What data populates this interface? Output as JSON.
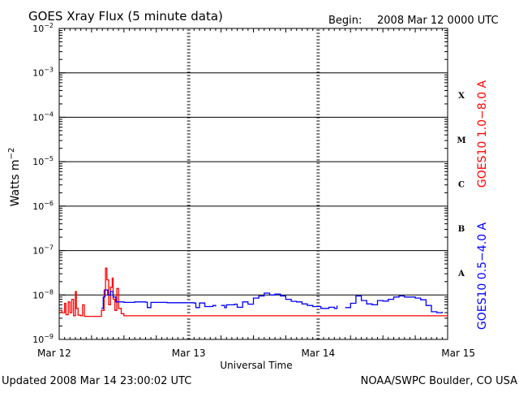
{
  "header": {
    "title": "GOES Xray Flux (5 minute data)",
    "begin_label": "Begin:",
    "begin_date": "2008 Mar 12 0000 UTC"
  },
  "footer": {
    "updated": "Updated 2008 Mar 14 23:00:02 UTC",
    "source": "NOAA/SWPC Boulder, CO USA"
  },
  "chart_data": {
    "type": "line",
    "title": "GOES Xray Flux (5 minute data)",
    "xlabel": "Universal Time",
    "ylabel": {
      "base": "Watts m",
      "sup": "−2"
    },
    "yscale": "log",
    "ylim": [
      1e-09,
      0.01
    ],
    "xlim": [
      "2008-03-12 00:00",
      "2008-03-15 00:00"
    ],
    "x_ticks": [
      "Mar 12",
      "Mar 13",
      "Mar 14",
      "Mar 15"
    ],
    "y_ticks": [
      {
        "value": 1e-09,
        "base": "10",
        "exp": "−9"
      },
      {
        "value": 1e-08,
        "base": "10",
        "exp": "−8"
      },
      {
        "value": 1e-07,
        "base": "10",
        "exp": "−7"
      },
      {
        "value": 1e-06,
        "base": "10",
        "exp": "−6"
      },
      {
        "value": 1e-05,
        "base": "10",
        "exp": "−5"
      },
      {
        "value": 0.0001,
        "base": "10",
        "exp": "−4"
      },
      {
        "value": 0.001,
        "base": "10",
        "exp": "−3"
      },
      {
        "value": 0.01,
        "base": "10",
        "exp": "−2"
      }
    ],
    "flare_classes": [
      {
        "label": "X",
        "low": 0.0001,
        "high": 0.001
      },
      {
        "label": "M",
        "low": 1e-05,
        "high": 0.0001
      },
      {
        "label": "C",
        "low": 1e-06,
        "high": 1e-05
      },
      {
        "label": "B",
        "low": 1e-07,
        "high": 1e-06
      },
      {
        "label": "A",
        "low": 1e-08,
        "high": 1e-07
      }
    ],
    "series": [
      {
        "name": "GOES10 1.0−8.0 A",
        "color": "#ff0000",
        "points": [
          [
            "2008-03-12 00:00",
            4.5e-09
          ],
          [
            "2008-03-12 00:30",
            4e-09
          ],
          [
            "2008-03-12 01:00",
            6.5e-09
          ],
          [
            "2008-03-12 01:15",
            3.6e-09
          ],
          [
            "2008-03-12 01:40",
            7e-09
          ],
          [
            "2008-03-12 02:00",
            4e-09
          ],
          [
            "2008-03-12 02:20",
            8e-09
          ],
          [
            "2008-03-12 02:40",
            3.4e-09
          ],
          [
            "2008-03-12 03:00",
            1.2e-08
          ],
          [
            "2008-03-12 03:10",
            5e-09
          ],
          [
            "2008-03-12 03:30",
            3.5e-09
          ],
          [
            "2008-03-12 04:00",
            3.4e-09
          ],
          [
            "2008-03-12 04:20",
            6e-09
          ],
          [
            "2008-03-12 04:40",
            3.3e-09
          ],
          [
            "2008-03-12 05:00",
            3.3e-09
          ],
          [
            "2008-03-12 07:30",
            3.3e-09
          ],
          [
            "2008-03-12 07:50",
            4.5e-09
          ],
          [
            "2008-03-12 08:20",
            1.3e-08
          ],
          [
            "2008-03-12 08:35",
            4e-08
          ],
          [
            "2008-03-12 08:50",
            2.2e-08
          ],
          [
            "2008-03-12 09:10",
            6e-09
          ],
          [
            "2008-03-12 09:30",
            1.5e-08
          ],
          [
            "2008-03-12 09:50",
            2.4e-08
          ],
          [
            "2008-03-12 10:00",
            8e-09
          ],
          [
            "2008-03-12 10:20",
            4.5e-09
          ],
          [
            "2008-03-12 10:40",
            1.4e-08
          ],
          [
            "2008-03-12 11:00",
            5e-09
          ],
          [
            "2008-03-12 11:30",
            3.8e-09
          ],
          [
            "2008-03-12 12:00",
            3.4e-09
          ],
          [
            "2008-03-14 23:55",
            3.3e-09
          ]
        ]
      },
      {
        "name": "GOES10 0.5−4.0 A",
        "color": "#0000ff",
        "points": [
          [
            "2008-03-12 07:50",
            5e-09
          ],
          [
            "2008-03-12 08:10",
            9e-09
          ],
          [
            "2008-03-12 08:30",
            1.3e-08
          ],
          [
            "2008-03-12 09:00",
            1e-08
          ],
          [
            "2008-03-12 09:30",
            1.2e-08
          ],
          [
            "2008-03-12 10:00",
            9e-09
          ],
          [
            "2008-03-12 10:30",
            7e-09
          ],
          [
            "2008-03-12 12:00",
            6.8e-09
          ],
          [
            "2008-03-12 14:00",
            7e-09
          ],
          [
            "2008-03-12 16:00",
            6.9e-09
          ],
          [
            "2008-03-12 16:20",
            5.2e-09
          ],
          [
            "2008-03-12 17:00",
            6.8e-09
          ],
          [
            "2008-03-12 20:00",
            6.7e-09
          ],
          [
            "2008-03-13 01:00",
            6.6e-09
          ],
          [
            "2008-03-13 01:20",
            5.2e-09
          ],
          [
            "2008-03-13 02:00",
            6.6e-09
          ],
          [
            "2008-03-13 03:00",
            5.5e-09
          ],
          [
            "2008-03-13 04:30",
            5.8e-09
          ],
          [
            "2008-03-13 05:00",
            5.5e-09
          ]
        ]
      },
      {
        "name": "GOES10 0.5−4.0 A",
        "color": "#0000ff",
        "points": [
          [
            "2008-03-13 06:00",
            5.8e-09
          ],
          [
            "2008-03-13 06:40",
            5.2e-09
          ],
          [
            "2008-03-13 07:00",
            6e-09
          ],
          [
            "2008-03-13 08:30",
            6.2e-09
          ],
          [
            "2008-03-13 09:00",
            5.3e-09
          ],
          [
            "2008-03-13 10:00",
            7e-09
          ],
          [
            "2008-03-13 11:00",
            6.2e-09
          ],
          [
            "2008-03-13 12:00",
            8.5e-09
          ],
          [
            "2008-03-13 13:00",
            9.5e-09
          ],
          [
            "2008-03-13 14:00",
            1.1e-08
          ],
          [
            "2008-03-13 15:00",
            1e-08
          ],
          [
            "2008-03-13 16:00",
            1.05e-08
          ],
          [
            "2008-03-13 17:00",
            9.5e-09
          ],
          [
            "2008-03-13 18:00",
            8e-09
          ],
          [
            "2008-03-13 19:00",
            7.2e-09
          ],
          [
            "2008-03-13 20:00",
            7e-09
          ],
          [
            "2008-03-13 21:00",
            6.3e-09
          ],
          [
            "2008-03-13 22:00",
            5.8e-09
          ],
          [
            "2008-03-13 23:00",
            5.5e-09
          ],
          [
            "2008-03-14 00:30",
            5e-09
          ],
          [
            "2008-03-14 02:00",
            5.3e-09
          ],
          [
            "2008-03-14 03:00",
            5e-09
          ],
          [
            "2008-03-14 03:30",
            5.8e-09
          ]
        ]
      },
      {
        "name": "GOES10 0.5−4.0 A",
        "color": "#0000ff",
        "points": [
          [
            "2008-03-14 05:00",
            5.2e-09
          ],
          [
            "2008-03-14 06:00",
            6.5e-09
          ],
          [
            "2008-03-14 07:00",
            9.5e-09
          ],
          [
            "2008-03-14 08:00",
            7.5e-09
          ],
          [
            "2008-03-14 09:00",
            6.3e-09
          ],
          [
            "2008-03-14 10:00",
            6e-09
          ],
          [
            "2008-03-14 11:00",
            7.5e-09
          ],
          [
            "2008-03-14 12:00",
            7.3e-09
          ],
          [
            "2008-03-14 13:00",
            8e-09
          ],
          [
            "2008-03-14 14:00",
            9e-09
          ],
          [
            "2008-03-14 15:00",
            9.5e-09
          ],
          [
            "2008-03-14 16:00",
            9e-09
          ],
          [
            "2008-03-14 17:00",
            9e-09
          ],
          [
            "2008-03-14 18:00",
            8.5e-09
          ],
          [
            "2008-03-14 19:00",
            7.8e-09
          ],
          [
            "2008-03-14 20:00",
            5.8e-09
          ],
          [
            "2008-03-14 21:00",
            4.2e-09
          ],
          [
            "2008-03-14 22:00",
            4e-09
          ],
          [
            "2008-03-14 23:00",
            4.2e-09
          ]
        ]
      }
    ]
  }
}
